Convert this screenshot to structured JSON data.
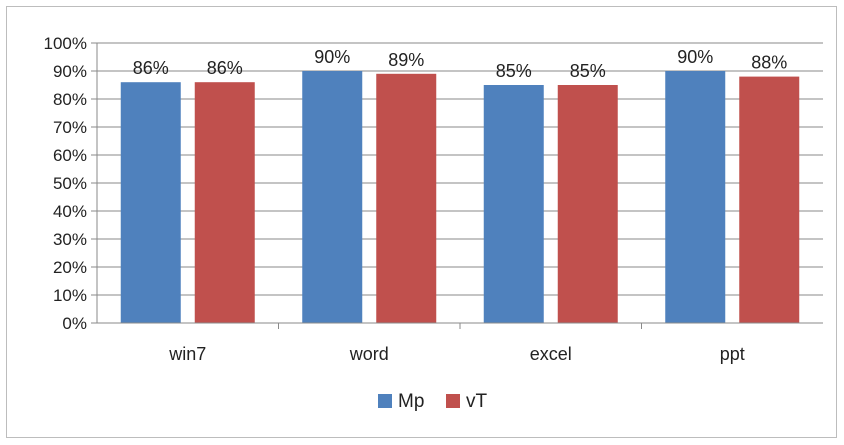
{
  "chart_data": {
    "type": "bar",
    "categories": [
      "win7",
      "word",
      "excel",
      "ppt"
    ],
    "series": [
      {
        "name": "Mp",
        "values": [
          86,
          90,
          85,
          90
        ],
        "labels": [
          "86%",
          "90%",
          "85%",
          "90%"
        ],
        "color": "#4f81bd"
      },
      {
        "name": "vT",
        "values": [
          86,
          89,
          85,
          88
        ],
        "labels": [
          "86%",
          "89%",
          "85%",
          "88%"
        ],
        "color": "#c0504d"
      }
    ],
    "ylim": [
      0,
      100
    ],
    "yticks": [
      0,
      10,
      20,
      30,
      40,
      50,
      60,
      70,
      80,
      90,
      100
    ],
    "ytick_labels": [
      "0%",
      "10%",
      "20%",
      "30%",
      "40%",
      "50%",
      "60%",
      "70%",
      "80%",
      "90%",
      "100%"
    ],
    "title": "",
    "xlabel": "",
    "ylabel": "",
    "grid": true,
    "legend_position": "bottom"
  }
}
